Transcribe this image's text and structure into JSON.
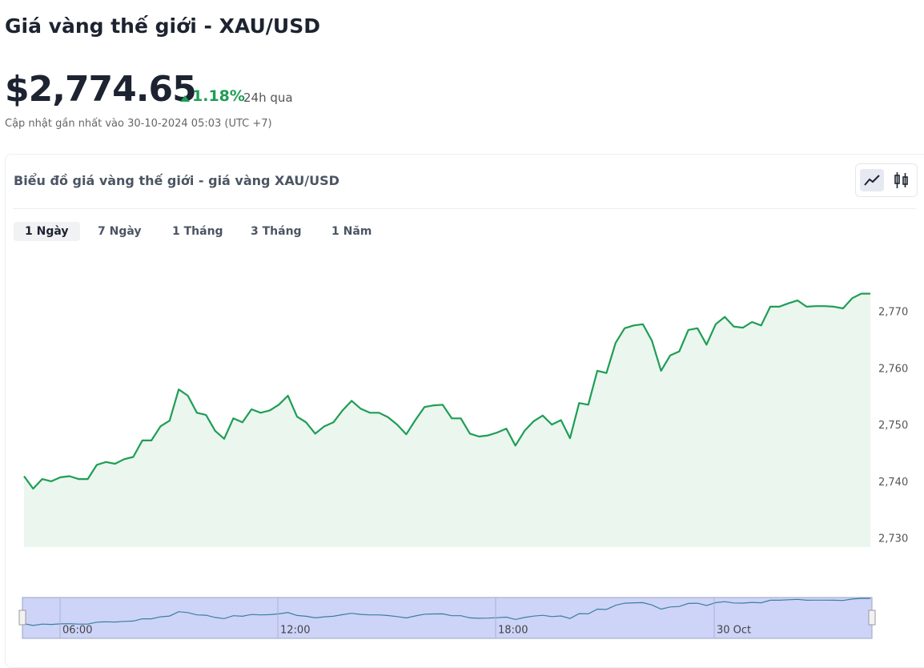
{
  "header": {
    "title": "Giá vàng thế giới - XAU/USD",
    "price": "$2,774.65",
    "change": "1.18%",
    "period": "24h qua",
    "updated": "Cập nhật gần nhất vào 30-10-2024 05:03 (UTC +7)"
  },
  "card": {
    "title": "Biểu đồ giá vàng thế giới - giá vàng XAU/USD",
    "tabs": [
      "1 Ngày",
      "7 Ngày",
      "1 Tháng",
      "3 Tháng",
      "1 Năm"
    ],
    "active_tab": 0
  },
  "chart_data": {
    "type": "area",
    "color": "#1f9d55",
    "fill": "#eaf6ee",
    "values": [
      2741.1,
      2738.9,
      2740.6,
      2740.2,
      2740.9,
      2741.1,
      2740.6,
      2740.6,
      2743.1,
      2743.6,
      2743.3,
      2744.1,
      2744.5,
      2747.4,
      2747.4,
      2749.9,
      2750.9,
      2756.4,
      2755.3,
      2752.3,
      2751.9,
      2749.1,
      2747.7,
      2751.3,
      2750.6,
      2752.9,
      2752.3,
      2752.7,
      2753.7,
      2755.3,
      2751.6,
      2750.6,
      2748.6,
      2749.9,
      2750.6,
      2752.7,
      2754.4,
      2753.0,
      2752.3,
      2752.3,
      2751.5,
      2750.2,
      2748.5,
      2751.0,
      2753.3,
      2753.6,
      2753.7,
      2751.3,
      2751.3,
      2748.6,
      2748.1,
      2748.3,
      2748.8,
      2749.5,
      2746.5,
      2749.1,
      2750.8,
      2751.8,
      2750.2,
      2751.0,
      2747.8,
      2754.0,
      2753.7,
      2759.7,
      2759.3,
      2764.6,
      2767.2,
      2767.7,
      2767.9,
      2765.0,
      2759.7,
      2762.4,
      2763.1,
      2766.9,
      2767.2,
      2764.3,
      2767.9,
      2769.2,
      2767.5,
      2767.3,
      2768.3,
      2767.7,
      2771.0,
      2771.0,
      2771.6,
      2772.1,
      2771.0,
      2771.1,
      2771.1,
      2771.0,
      2770.7,
      2772.5,
      2773.3,
      2773.3
    ],
    "ylim": [
      2728.6,
      2781.3
    ],
    "yticks": [
      {
        "value": 2730,
        "label": "2,730"
      },
      {
        "value": 2740,
        "label": "2,740"
      },
      {
        "value": 2750,
        "label": "2,750"
      },
      {
        "value": 2760,
        "label": "2,760"
      },
      {
        "value": 2770,
        "label": "2,770"
      }
    ],
    "navigator_labels": [
      "06:00",
      "12:00",
      "18:00",
      "30 Oct"
    ]
  }
}
